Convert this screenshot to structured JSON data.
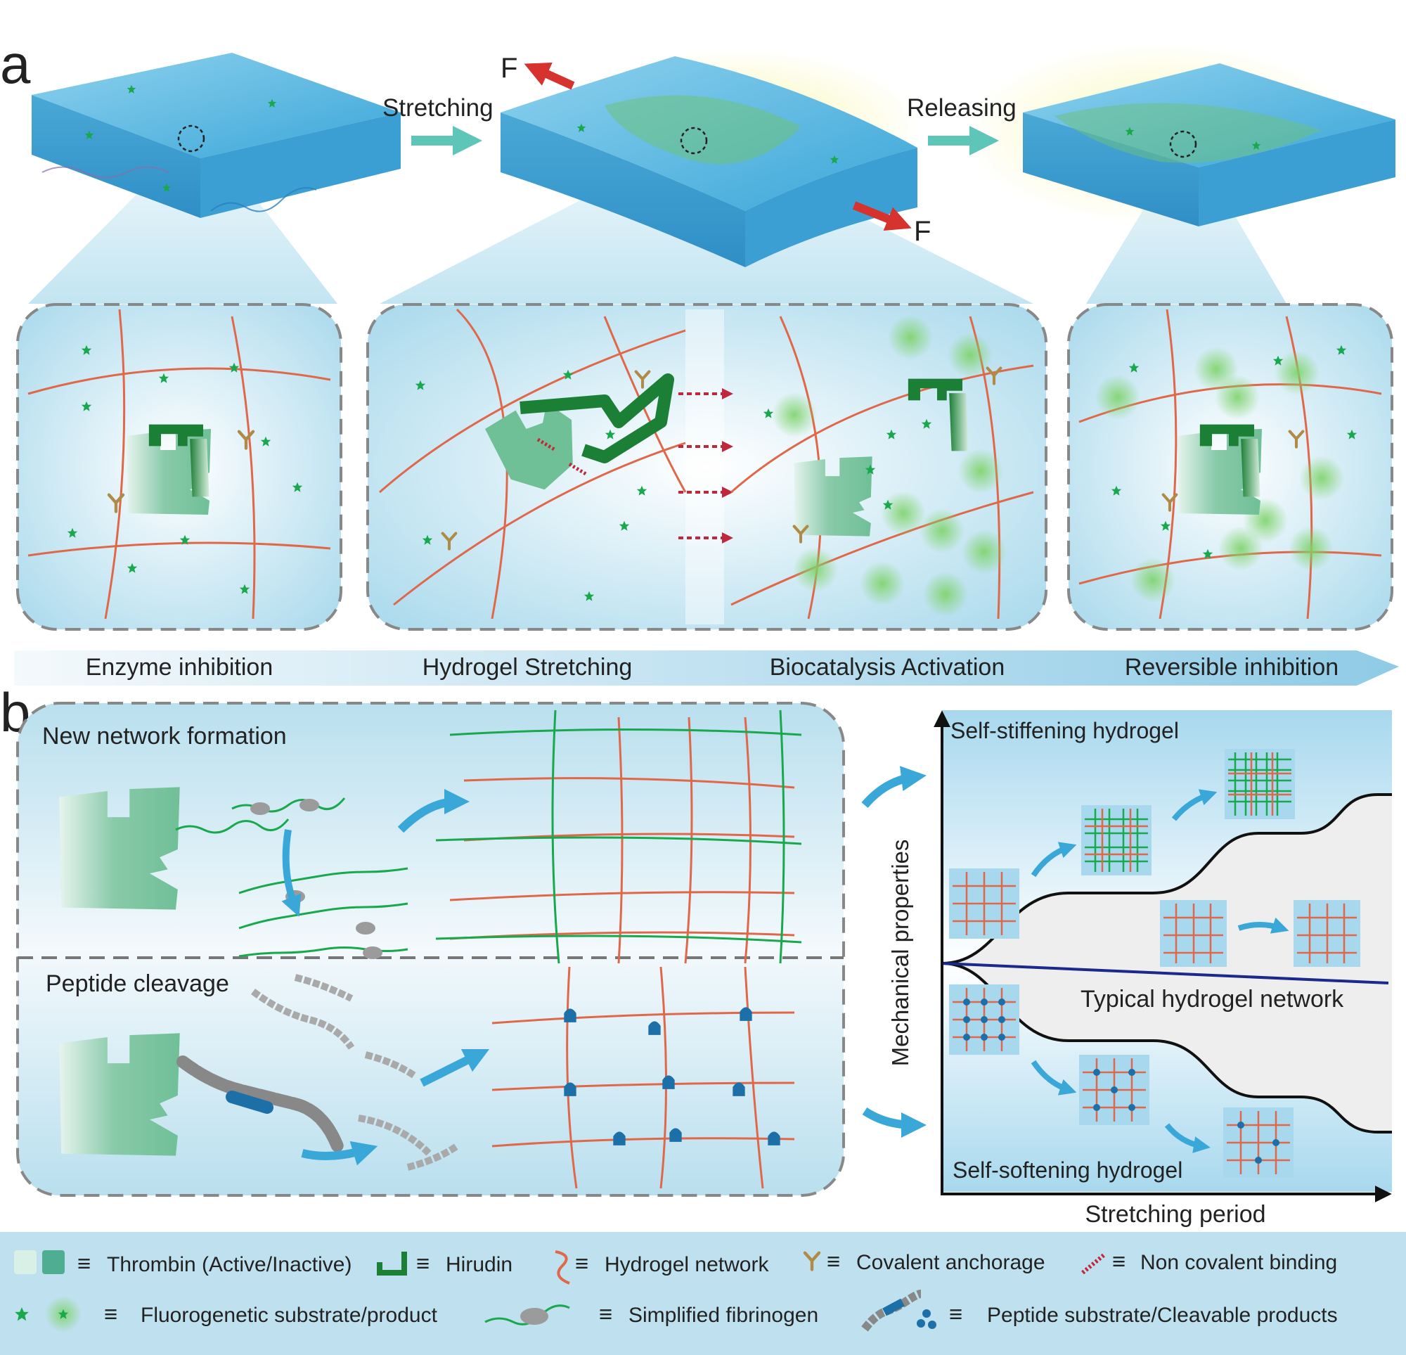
{
  "panel_a": {
    "letter": "a",
    "arrow_stretching": "Stretching",
    "arrow_releasing": "Releasing",
    "force_label": "F",
    "stage_labels": [
      "Enzyme inhibition",
      "Hydrogel Stretching",
      "Biocatalysis Activation",
      "Reversible inhibition"
    ]
  },
  "panel_b": {
    "letter": "b",
    "box_top_title": "New network formation",
    "box_bottom_title": "Peptide cleavage",
    "graph": {
      "ylabel": "Mechanical properties",
      "xlabel": "Stretching period",
      "curve_top_label": "Self-stiffening hydrogel",
      "curve_mid_label": "Typical hydrogel network",
      "curve_bottom_label": "Self-softening hydrogel"
    }
  },
  "legend": {
    "row1": [
      "Thrombin (Active/Inactive)",
      "Hirudin",
      "Hydrogel network",
      "Covalent anchorage",
      "Non covalent binding"
    ],
    "row2": [
      "Fluorogenetic substrate/product",
      "Simplified fibrinogen",
      "Peptide substrate/Cleavable products"
    ]
  },
  "colors": {
    "hydrogel_fiber": "#e0684a",
    "hirudin": "#1e8a3c",
    "thrombin": "#86c9a8",
    "substrate_star": "#1aa84e",
    "peptide_blue": "#1d6fa8",
    "slab_blue": "#5fb8e0",
    "arrow_teal": "#5ec6b8",
    "arrow_blue": "#39a8d8",
    "force_red": "#d6322e",
    "legend_bg": "#bfe0ee"
  }
}
